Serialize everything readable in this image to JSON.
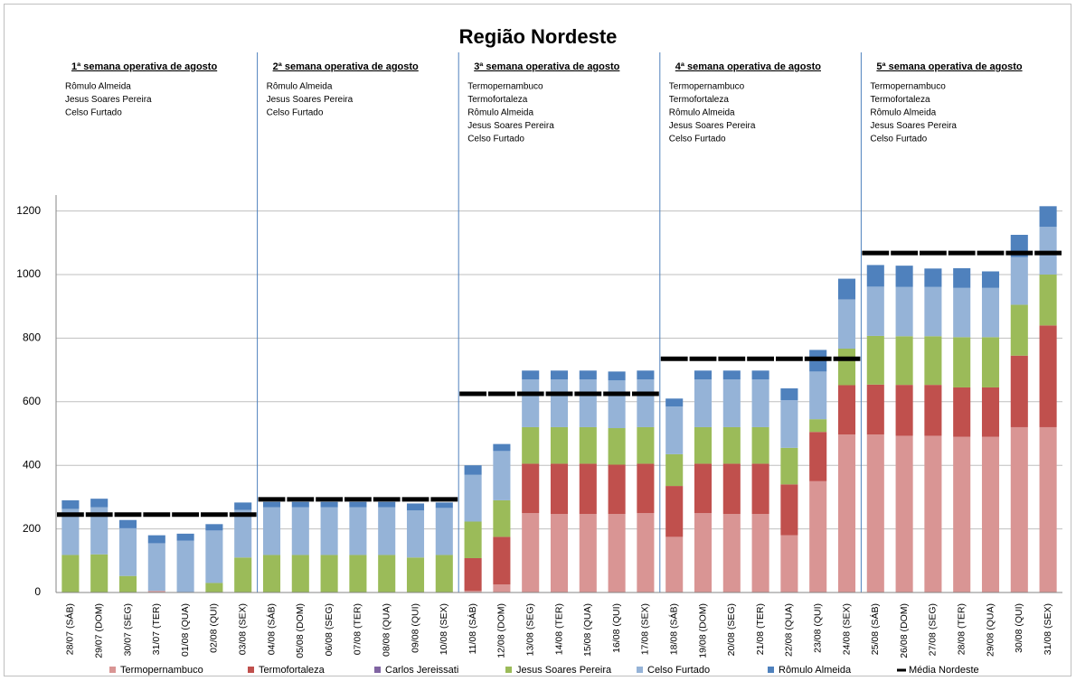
{
  "chart_data": {
    "type": "bar",
    "stacked": true,
    "title": "Região Nordeste",
    "categories": [
      "28/07 (SÁB)",
      "29/07 (DOM)",
      "30/07 (SEG)",
      "31/07 (TER)",
      "01/08 (QUA)",
      "02/08 (QUI)",
      "03/08 (SEX)",
      "04/08 (SÁB)",
      "05/08 (DOM)",
      "06/08 (SEG)",
      "07/08 (TER)",
      "08/08 (QUA)",
      "09/08 (QUI)",
      "10/08 (SEX)",
      "11/08 (SÁB)",
      "12/08 (DOM)",
      "13/08 (SEG)",
      "14/08 (TER)",
      "15/08 (QUA)",
      "16/08 (QUI)",
      "17/08 (SEX)",
      "18/08 (SÁB)",
      "19/08 (DOM)",
      "20/08 (SEG)",
      "21/08 (TER)",
      "22/08 (QUA)",
      "23/08 (QUI)",
      "24/08 (SEX)",
      "25/08 (SÁB)",
      "26/08 (DOM)",
      "27/08 (SEG)",
      "28/08 (TER)",
      "29/08 (QUA)",
      "30/08 (QUI)",
      "31/08 (SEX)"
    ],
    "series": [
      {
        "name": "Termopernambuco",
        "color": "#d99594",
        "values": [
          0,
          0,
          0,
          5,
          0,
          0,
          0,
          0,
          0,
          0,
          0,
          0,
          0,
          0,
          5,
          25,
          250,
          247,
          247,
          247,
          250,
          175,
          250,
          247,
          247,
          180,
          350,
          497,
          497,
          493,
          493,
          490,
          490,
          520,
          520
        ]
      },
      {
        "name": "Termofortaleza",
        "color": "#c0504d",
        "values": [
          0,
          0,
          0,
          0,
          0,
          0,
          0,
          0,
          0,
          0,
          0,
          0,
          0,
          0,
          103,
          150,
          155,
          158,
          158,
          155,
          155,
          160,
          155,
          158,
          158,
          160,
          155,
          155,
          157,
          160,
          160,
          155,
          155,
          225,
          320
        ]
      },
      {
        "name": "Carlos Jereissati",
        "color": "#8064a2",
        "values": [
          0,
          0,
          0,
          0,
          0,
          0,
          0,
          0,
          0,
          0,
          0,
          0,
          0,
          0,
          0,
          0,
          0,
          0,
          0,
          0,
          0,
          0,
          0,
          0,
          0,
          0,
          0,
          0,
          0,
          0,
          0,
          0,
          0,
          0,
          0
        ]
      },
      {
        "name": "Jesus Soares Pereira",
        "color": "#9bbb59",
        "values": [
          118,
          120,
          52,
          0,
          0,
          30,
          110,
          118,
          118,
          118,
          118,
          118,
          110,
          118,
          115,
          115,
          115,
          115,
          115,
          115,
          115,
          100,
          115,
          115,
          115,
          115,
          40,
          115,
          153,
          153,
          153,
          158,
          158,
          160,
          160
        ]
      },
      {
        "name": "Celso Furtado",
        "color": "#95b3d7",
        "values": [
          145,
          148,
          150,
          150,
          163,
          165,
          150,
          150,
          150,
          150,
          150,
          150,
          148,
          148,
          147,
          155,
          150,
          150,
          150,
          150,
          150,
          150,
          150,
          150,
          150,
          150,
          150,
          155,
          155,
          155,
          155,
          155,
          155,
          150,
          150
        ]
      },
      {
        "name": "Rômulo Almeida",
        "color": "#4f81bd",
        "values": [
          27,
          27,
          26,
          25,
          22,
          20,
          23,
          17,
          17,
          17,
          17,
          17,
          22,
          17,
          30,
          22,
          28,
          28,
          28,
          28,
          28,
          25,
          28,
          28,
          28,
          37,
          68,
          65,
          68,
          67,
          58,
          62,
          52,
          70,
          65
        ]
      },
      {
        "name": "Média Nordeste",
        "type": "line",
        "color": "#000000",
        "values": [
          245,
          245,
          245,
          245,
          245,
          245,
          245,
          293,
          293,
          293,
          293,
          293,
          293,
          293,
          625,
          625,
          625,
          625,
          625,
          625,
          625,
          735,
          735,
          735,
          735,
          735,
          735,
          735,
          1068,
          1068,
          1068,
          1068,
          1068,
          1068,
          1068
        ]
      }
    ],
    "ylim": [
      0,
      1250
    ],
    "yticks": [
      0,
      200,
      400,
      600,
      800,
      1000,
      1200
    ],
    "grid": true,
    "weeks": [
      {
        "title": "1ª semana operativa de agosto",
        "plants": [
          "Rômulo Almeida",
          "Jesus Soares Pereira",
          "Celso Furtado"
        ]
      },
      {
        "title": "2ª semana operativa de agosto",
        "plants": [
          "Rômulo Almeida",
          "Jesus Soares Pereira",
          "Celso Furtado"
        ]
      },
      {
        "title": "3ª semana operativa de agosto",
        "plants": [
          "Termopernambuco",
          "Termofortaleza",
          "Rômulo Almeida",
          "Jesus Soares Pereira",
          "Celso Furtado"
        ]
      },
      {
        "title": "4ª semana operativa de agosto",
        "plants": [
          "Termopernambuco",
          "Termofortaleza",
          "Rômulo Almeida",
          "Jesus Soares Pereira",
          "Celso Furtado"
        ]
      },
      {
        "title": "5ª semana operativa de agosto",
        "plants": [
          "Termopernambuco",
          "Termofortaleza",
          "Rômulo Almeida",
          "Jesus Soares Pereira",
          "Celso Furtado"
        ]
      }
    ],
    "legend": "bottom"
  }
}
